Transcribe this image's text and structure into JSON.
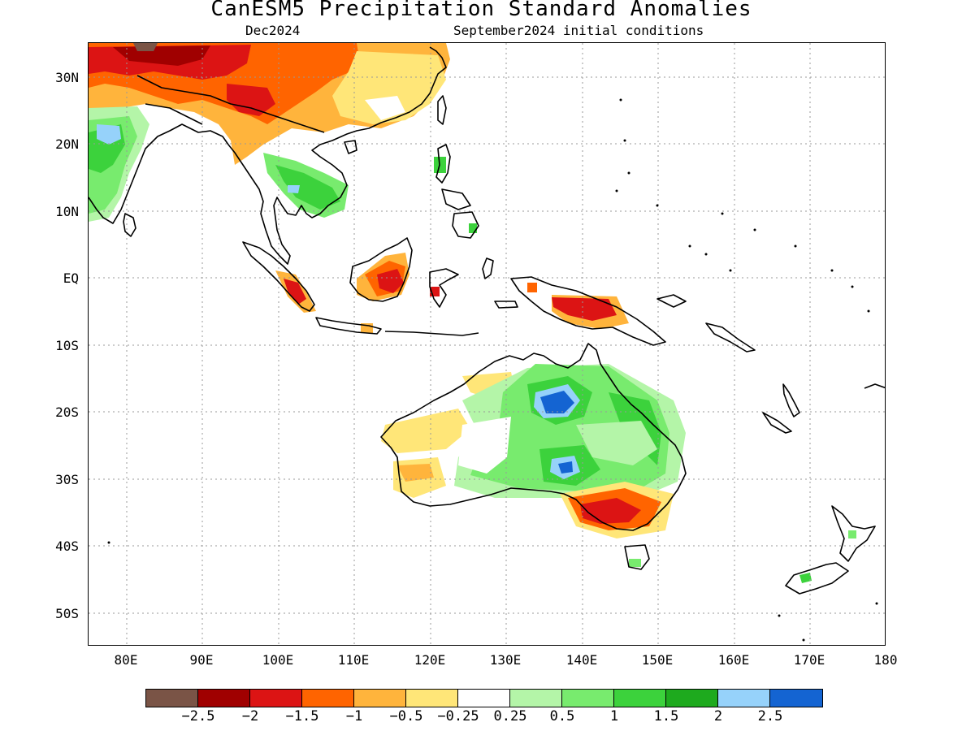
{
  "title": "CanESM5 Precipitation Standard Anomalies",
  "subtitle_left": "Dec2024",
  "subtitle_right": "September2024 initial conditions",
  "lat_labels": [
    "30N",
    "20N",
    "10N",
    "EQ",
    "10S",
    "20S",
    "30S",
    "40S",
    "50S"
  ],
  "lon_labels": [
    "80E",
    "90E",
    "100E",
    "110E",
    "120E",
    "130E",
    "140E",
    "150E",
    "160E",
    "170E",
    "180"
  ],
  "map_extent": {
    "lon_min": 75,
    "lon_max": 180,
    "lat_min": -55,
    "lat_max": 35
  },
  "grid": {
    "dotted": true,
    "lon_step": 10,
    "lat_step": 10
  },
  "colorbar": {
    "colors": [
      "#7a5446",
      "#a00000",
      "#dc1414",
      "#ff6400",
      "#ffb43c",
      "#ffe678",
      "#ffffff",
      "#b4f5a8",
      "#78eb6e",
      "#3cd23c",
      "#1eaa1e",
      "#96d2fa",
      "#1464d2"
    ],
    "labels": [
      "-2.5",
      "-2",
      "-1.5",
      "-1",
      "-0.5",
      "-0.25",
      "0.25",
      "0.5",
      "1",
      "1.5",
      "2",
      "2.5"
    ]
  },
  "anomaly_regions": [
    {
      "name": "tibet-dry-core",
      "lon": 85,
      "lat": 33,
      "level": "-2.5"
    },
    {
      "name": "north-india-dry",
      "lon": 88,
      "lat": 30,
      "level": "-1.5"
    },
    {
      "name": "sw-china-dry",
      "lon": 101,
      "lat": 27,
      "level": "-1.5"
    },
    {
      "name": "south-china-dry",
      "lon": 112,
      "lat": 27,
      "level": "-1"
    },
    {
      "name": "india-wet",
      "lon": 79,
      "lat": 19,
      "level": "1.5"
    },
    {
      "name": "indochina-wet",
      "lon": 103,
      "lat": 14,
      "level": "1.5"
    },
    {
      "name": "borneo-dry",
      "lon": 114,
      "lat": 0,
      "level": "-1.5"
    },
    {
      "name": "sumatra-dry",
      "lon": 104,
      "lat": -3,
      "level": "-1.5"
    },
    {
      "name": "new-guinea-dry",
      "lon": 142,
      "lat": -5,
      "level": "-1.5"
    },
    {
      "name": "n-australia-wet",
      "lon": 136,
      "lat": -20,
      "level": "2.5"
    },
    {
      "name": "central-australia-wet",
      "lon": 137,
      "lat": -28,
      "level": "2.5"
    },
    {
      "name": "se-australia-dry",
      "lon": 143,
      "lat": -35,
      "level": "-1.5"
    },
    {
      "name": "w-australia-dry",
      "lon": 118,
      "lat": -29,
      "level": "-0.5"
    }
  ]
}
